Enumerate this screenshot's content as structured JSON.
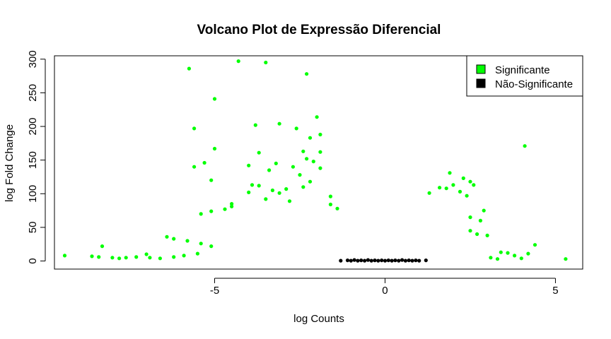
{
  "chart_data": {
    "type": "scatter",
    "title": "Volcano Plot de Expressão Diferencial",
    "xlabel": "log Counts",
    "ylabel": "log Fold Change",
    "xlim": [
      -9.7,
      5.8
    ],
    "ylim": [
      -12,
      305
    ],
    "x_ticks": [
      -5,
      0,
      5
    ],
    "y_ticks": [
      0,
      50,
      100,
      150,
      200,
      250,
      300
    ],
    "grid": false,
    "legend_position": "top-right",
    "legend": [
      {
        "label": "Significante",
        "color": "#00ff00"
      },
      {
        "label": "Não-Significante",
        "color": "#000000"
      }
    ],
    "series": [
      {
        "name": "Significante",
        "color": "#00ff00",
        "points": [
          [
            -5.75,
            286
          ],
          [
            -4.3,
            297
          ],
          [
            -3.5,
            295
          ],
          [
            -2.3,
            278
          ],
          [
            -5.0,
            241
          ],
          [
            -2.0,
            214
          ],
          [
            -3.1,
            204
          ],
          [
            -3.8,
            202
          ],
          [
            -5.6,
            197
          ],
          [
            -2.6,
            197
          ],
          [
            -1.9,
            188
          ],
          [
            -2.2,
            183
          ],
          [
            -5.0,
            167
          ],
          [
            4.1,
            171
          ],
          [
            -3.7,
            161
          ],
          [
            -2.4,
            163
          ],
          [
            -1.9,
            162
          ],
          [
            -2.3,
            152
          ],
          [
            -5.3,
            146
          ],
          [
            -5.6,
            140
          ],
          [
            -4.0,
            142
          ],
          [
            -3.2,
            145
          ],
          [
            -2.1,
            148
          ],
          [
            -3.4,
            135
          ],
          [
            -2.7,
            140
          ],
          [
            -2.5,
            128
          ],
          [
            -1.9,
            138
          ],
          [
            -3.9,
            113
          ],
          [
            -3.7,
            112
          ],
          [
            -5.1,
            120
          ],
          [
            -3.3,
            105
          ],
          [
            -2.9,
            107
          ],
          [
            -2.2,
            118
          ],
          [
            -3.1,
            101
          ],
          [
            -2.4,
            110
          ],
          [
            1.9,
            131
          ],
          [
            2.3,
            123
          ],
          [
            2.5,
            118
          ],
          [
            2.6,
            113
          ],
          [
            2.0,
            113
          ],
          [
            1.6,
            109
          ],
          [
            1.8,
            108
          ],
          [
            2.2,
            103
          ],
          [
            1.3,
            101
          ],
          [
            -4.0,
            102
          ],
          [
            -1.6,
            96
          ],
          [
            -3.5,
            92
          ],
          [
            -2.8,
            89
          ],
          [
            -4.5,
            85
          ],
          [
            -5.1,
            74
          ],
          [
            -5.4,
            70
          ],
          [
            -4.5,
            81
          ],
          [
            -4.7,
            77
          ],
          [
            -1.4,
            78
          ],
          [
            -1.6,
            84
          ],
          [
            2.4,
            97
          ],
          [
            2.9,
            75
          ],
          [
            2.5,
            65
          ],
          [
            2.8,
            60
          ],
          [
            2.5,
            45
          ],
          [
            2.7,
            40
          ],
          [
            3.0,
            38
          ],
          [
            -6.4,
            36
          ],
          [
            -6.2,
            33
          ],
          [
            -5.8,
            30
          ],
          [
            -5.4,
            26
          ],
          [
            -5.1,
            22
          ],
          [
            -8.3,
            22
          ],
          [
            -9.4,
            8
          ],
          [
            -8.6,
            7
          ],
          [
            -8.4,
            6
          ],
          [
            -8.0,
            5
          ],
          [
            -7.8,
            4
          ],
          [
            -7.6,
            5
          ],
          [
            -7.3,
            6
          ],
          [
            -7.0,
            10
          ],
          [
            -6.9,
            5
          ],
          [
            -6.6,
            4
          ],
          [
            -6.2,
            6
          ],
          [
            -5.9,
            8
          ],
          [
            -5.5,
            11
          ],
          [
            3.4,
            13
          ],
          [
            3.6,
            12
          ],
          [
            3.8,
            8
          ],
          [
            4.2,
            11
          ],
          [
            4.4,
            24
          ],
          [
            4.0,
            4
          ],
          [
            5.3,
            3
          ],
          [
            3.1,
            5
          ],
          [
            3.3,
            3
          ]
        ]
      },
      {
        "name": "Não-Significante",
        "color": "#000000",
        "points": [
          [
            -1.3,
            0.5
          ],
          [
            -1.1,
            1
          ],
          [
            -1.0,
            0.5
          ],
          [
            -0.9,
            1.5
          ],
          [
            -0.8,
            0.5
          ],
          [
            -0.7,
            1
          ],
          [
            -0.6,
            0.5
          ],
          [
            -0.5,
            1.5
          ],
          [
            -0.4,
            0.5
          ],
          [
            -0.3,
            1
          ],
          [
            -0.2,
            0.5
          ],
          [
            -0.1,
            1
          ],
          [
            0.0,
            0.5
          ],
          [
            0.1,
            1
          ],
          [
            0.2,
            0.5
          ],
          [
            0.3,
            1
          ],
          [
            0.4,
            0.5
          ],
          [
            0.5,
            1.5
          ],
          [
            0.6,
            0.5
          ],
          [
            0.7,
            1
          ],
          [
            0.8,
            0.5
          ],
          [
            0.9,
            1
          ],
          [
            1.0,
            0.5
          ],
          [
            1.2,
            1
          ]
        ]
      }
    ]
  }
}
